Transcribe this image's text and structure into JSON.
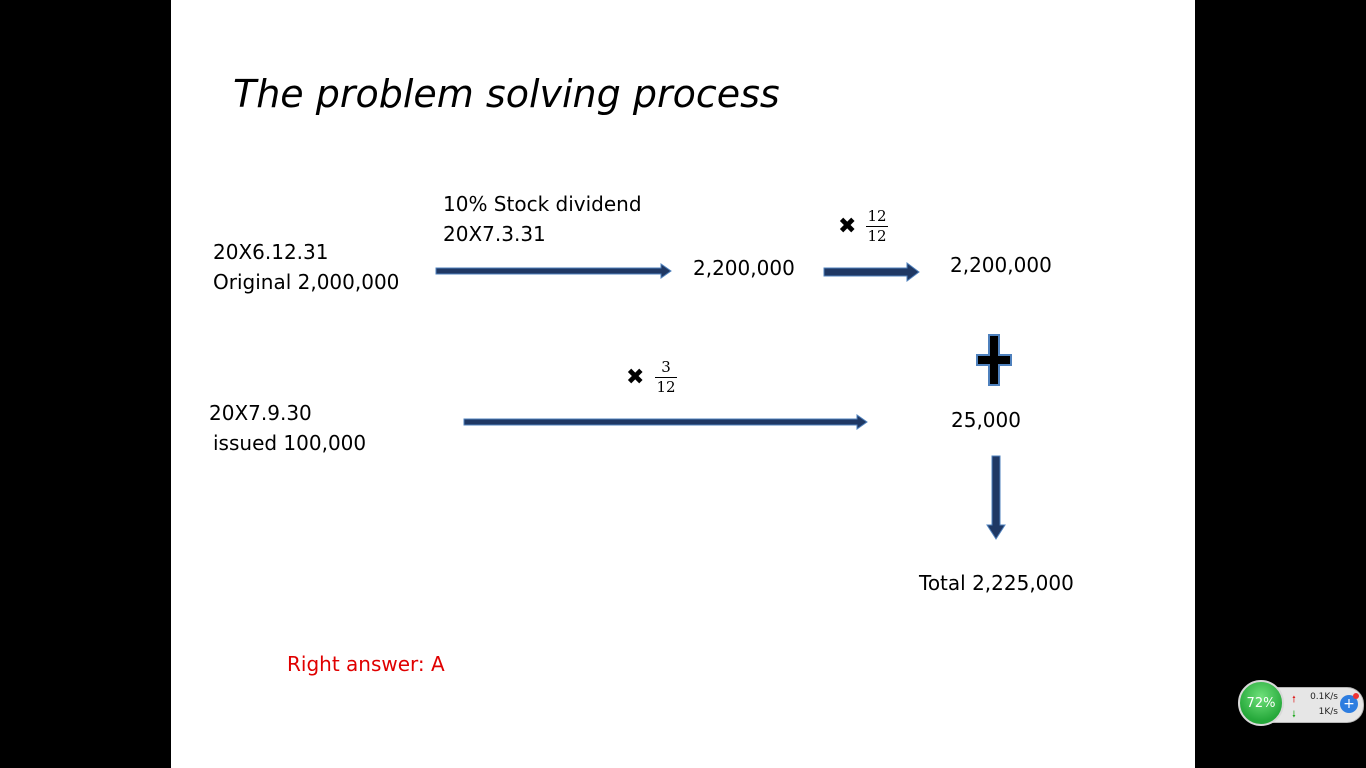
{
  "slide": {
    "title": "The problem solving process",
    "row1": {
      "date": "20X6.12.31",
      "original": "Original 2,000,000",
      "event_line1": "10% Stock dividend",
      "event_line2": "20X7.3.31",
      "mid_value": "2,200,000",
      "weight_num": "12",
      "weight_den": "12",
      "result": "2,200,000"
    },
    "row2": {
      "date": "20X7.9.30",
      "issued": "issued 100,000",
      "weight_num": "3",
      "weight_den": "12",
      "result": "25,000"
    },
    "total": "Total  2,225,000",
    "answer": "Right answer: A",
    "answer_color": "#e00000",
    "arrow_color": "#1f3864",
    "arrow_border": "#4f81bd"
  },
  "tray": {
    "battery": "72%",
    "upload": "0.1K/s",
    "download": "1K/s",
    "up_icon": "arrow-up-icon",
    "down_icon": "arrow-down-icon",
    "plus_icon": "plus-icon"
  }
}
